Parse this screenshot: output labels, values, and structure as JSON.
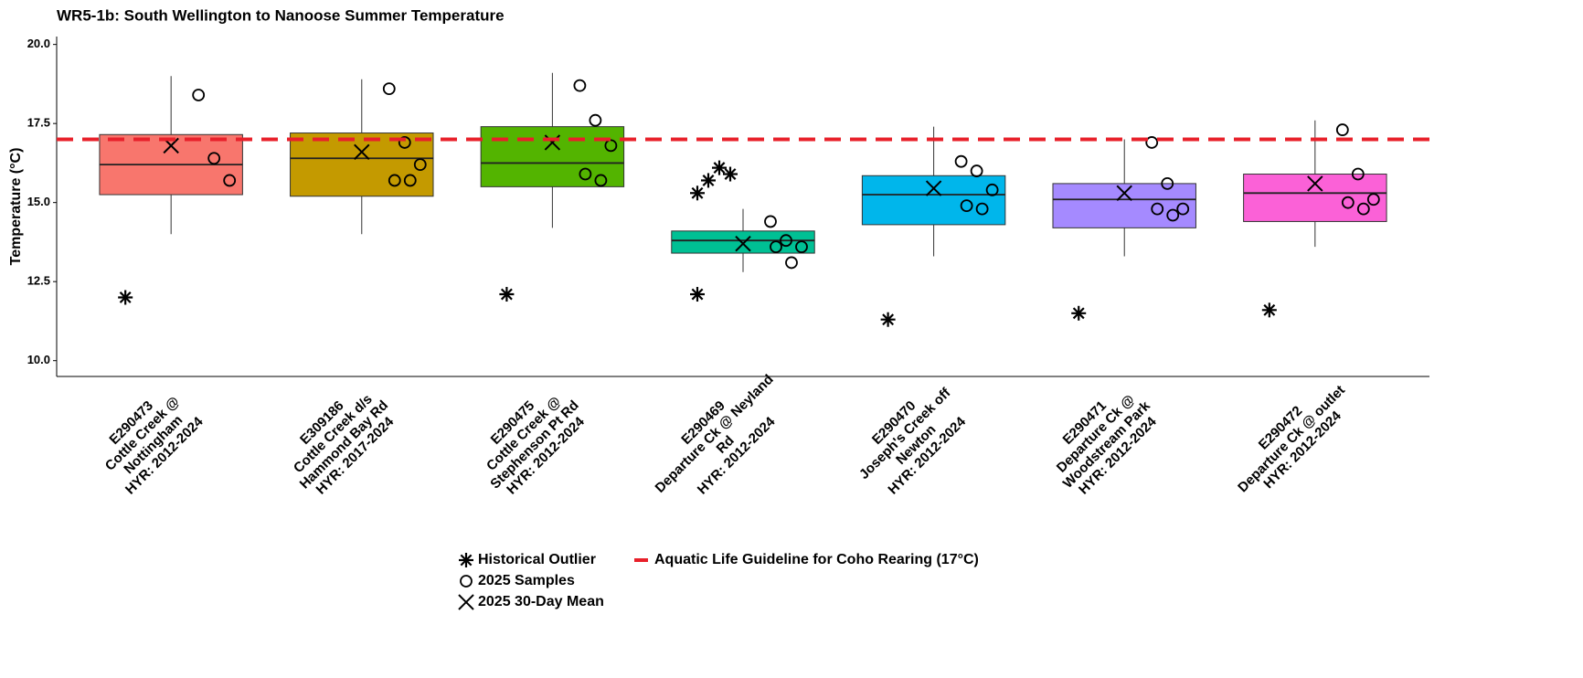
{
  "chart_data": {
    "type": "box",
    "title": "WR5-1b: South Wellington to Nanoose Summer Temperature",
    "y_label": "Temperature (°C)",
    "ylim": [
      9.5,
      20.25
    ],
    "yticks": [
      {
        "value": 10,
        "label": "10.0"
      },
      12.5,
      {
        "value": 15,
        "label": "15.0"
      },
      17.5,
      {
        "value": 20,
        "label": "20.0"
      }
    ],
    "categories": [
      [
        "E290473",
        "Cottle Creek @",
        "Nottingham",
        "HYR: 2012-2024"
      ],
      [
        "E309186",
        "Cottle Creek d/s",
        "Hammond Bay Rd",
        "HYR: 2017-2024"
      ],
      [
        "E290475",
        "Cottle Creek @",
        "Stephenson Pt Rd",
        "HYR: 2012-2024"
      ],
      [
        "E290469",
        "Departure Ck @ Neyland",
        "Rd",
        "HYR: 2012-2024"
      ],
      [
        "E290470",
        "Joseph's Creek off",
        "Newton",
        "HYR: 2012-2024"
      ],
      [
        "E290471",
        "Departure Ck @",
        "Woodstream Park",
        "HYR: 2012-2024"
      ],
      [
        "E290472",
        "Departure Ck @ outlet",
        "HYR: 2012-2024"
      ]
    ],
    "boxes": [
      {
        "color": "#f8766d",
        "low": 14.0,
        "q1": 15.25,
        "median": 16.2,
        "q3": 17.15,
        "high": 19.0,
        "mean": 16.8,
        "samples": [
          18.4,
          16.4,
          15.7
        ],
        "outliers": [
          12.0
        ]
      },
      {
        "color": "#c49a00",
        "low": 14.0,
        "q1": 15.2,
        "median": 16.4,
        "q3": 17.2,
        "high": 18.9,
        "mean": 16.6,
        "samples": [
          18.6,
          16.9,
          16.2,
          15.7,
          15.7
        ],
        "outliers": []
      },
      {
        "color": "#53b400",
        "low": 14.2,
        "q1": 15.5,
        "median": 16.25,
        "q3": 17.4,
        "high": 19.1,
        "mean": 16.9,
        "samples": [
          18.7,
          17.6,
          16.8,
          15.9,
          15.7
        ],
        "outliers": [
          12.1
        ]
      },
      {
        "color": "#00c094",
        "low": 12.8,
        "q1": 13.4,
        "median": 13.8,
        "q3": 14.1,
        "high": 14.8,
        "mean": 13.7,
        "samples": [
          14.4,
          13.8,
          13.6,
          13.6,
          13.1
        ],
        "outliers": [
          15.3,
          15.7,
          16.1,
          15.9,
          12.1
        ]
      },
      {
        "color": "#00b6eb",
        "low": 13.3,
        "q1": 14.3,
        "median": 15.25,
        "q3": 15.85,
        "high": 17.4,
        "mean": 15.45,
        "samples": [
          16.3,
          16.0,
          15.4,
          14.9,
          14.8
        ],
        "outliers": [
          11.3
        ]
      },
      {
        "color": "#a58aff",
        "low": 13.3,
        "q1": 14.2,
        "median": 15.1,
        "q3": 15.6,
        "high": 17.0,
        "mean": 15.3,
        "samples": [
          16.9,
          15.6,
          14.8,
          14.8,
          14.6
        ],
        "outliers": [
          11.5
        ]
      },
      {
        "color": "#fb61d7",
        "low": 13.6,
        "q1": 14.4,
        "median": 15.3,
        "q3": 15.9,
        "high": 17.6,
        "mean": 15.6,
        "samples": [
          17.3,
          15.9,
          15.1,
          15.0,
          14.8
        ],
        "outliers": [
          11.6
        ]
      }
    ],
    "guideline": {
      "value": 17,
      "color": "#e8202a",
      "label": "Aquatic Life Guideline for Coho Rearing (17°C)"
    },
    "legend": {
      "outlier": "Historical Outlier",
      "samples": "2025 Samples",
      "mean": "2025 30-Day Mean"
    }
  }
}
